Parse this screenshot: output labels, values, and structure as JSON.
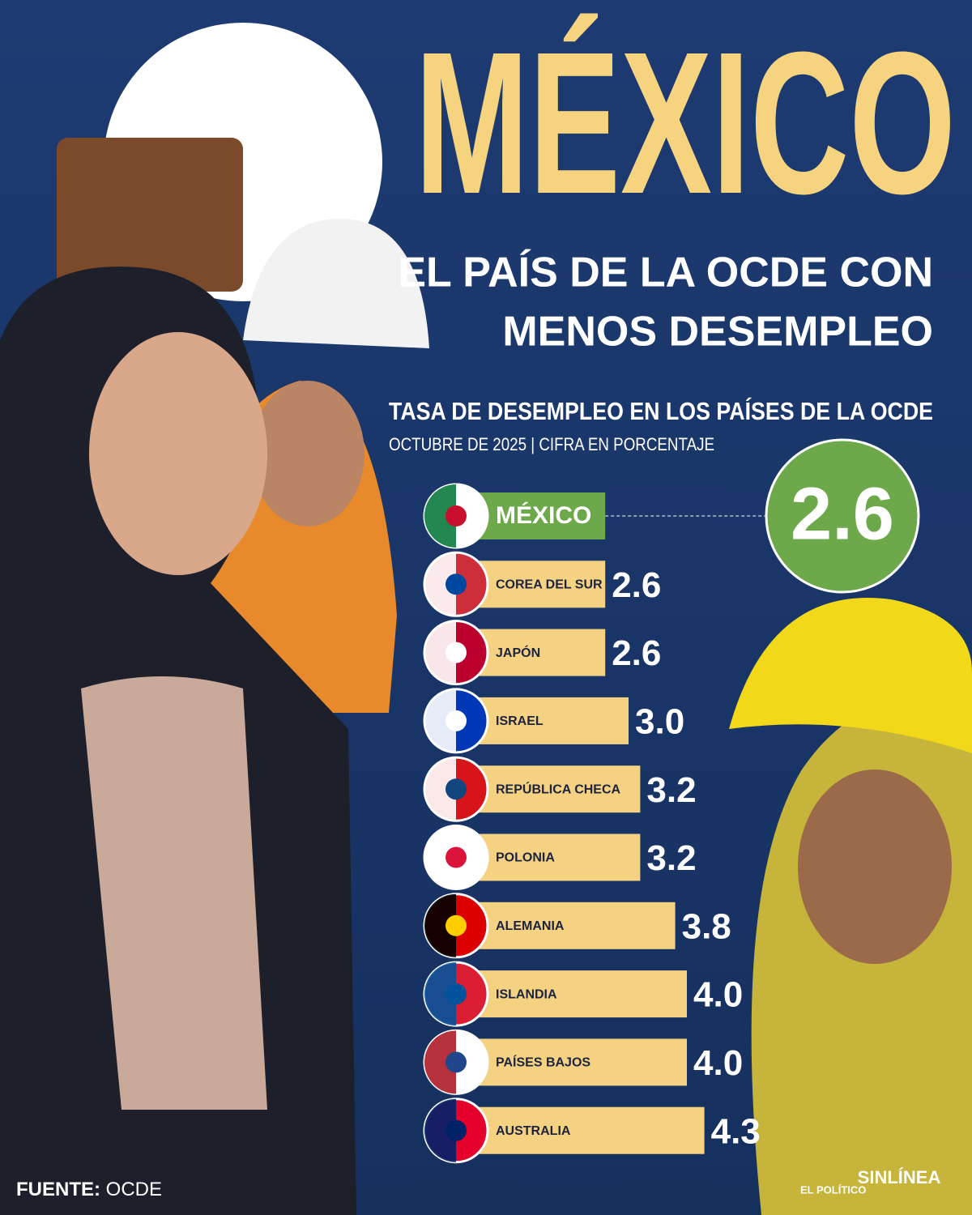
{
  "chart_data": {
    "type": "bar",
    "title": "MÉXICO",
    "subtitle": "EL PAÍS DE LA OCDE CON MENOS DESEMPLEO",
    "chart_title": "TASA DE DESEMPLEO EN LOS PAÍSES DE LA OCDE",
    "chart_subtitle": "OCTUBRE DE 2025 | CIFRA EN PORCENTAJE",
    "categories": [
      "MÉXICO",
      "COREA DEL SUR",
      "JAPÓN",
      "ISRAEL",
      "REPÚBLICA CHECA",
      "POLONIA",
      "ALEMANIA",
      "ISLANDIA",
      "PAÍSES BAJOS",
      "AUSTRALIA"
    ],
    "values": [
      2.6,
      2.6,
      2.6,
      3.0,
      3.2,
      3.2,
      3.8,
      4.0,
      4.0,
      4.3
    ],
    "value_labels": [
      "2.6",
      "2.6",
      "2.6",
      "3.0",
      "3.2",
      "3.2",
      "3.8",
      "4.0",
      "4.0",
      "4.3"
    ],
    "color": "#f5d282",
    "highlight_color": "#6da94a",
    "source_label": "FUENTE:",
    "source": "OCDE",
    "logos": [
      "EL POLÍTICO",
      "SINLÍNEA"
    ]
  }
}
